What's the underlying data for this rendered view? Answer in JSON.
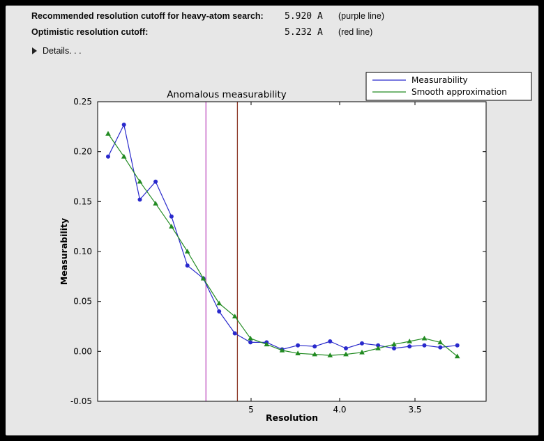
{
  "window": {
    "background": "#000000",
    "panel_color": "#e7e7e7"
  },
  "header": {
    "rows": [
      {
        "label": "Recommended resolution cutoff for heavy-atom search:",
        "value": "5.920 A",
        "note": "(purple line)"
      },
      {
        "label": "Optimistic resolution cutoff:",
        "value": "5.232 A",
        "note": "(red line)"
      }
    ],
    "details_label": "Details. . ."
  },
  "chart_data": {
    "type": "line",
    "title": "Anomalous measurability",
    "xlabel": "Resolution",
    "ylabel": "Measurability",
    "x_axis": {
      "scale": "linear in 1/d^2, resolution d (Angstrom) decreasing to the right",
      "tick_labels": [
        "5",
        "4.0",
        "3.5"
      ],
      "tick_d_values": [
        5.0,
        4.0,
        3.5
      ],
      "xlim_d_star_sq": [
        0.00102,
        0.0997
      ]
    },
    "y_axis": {
      "ticks": [
        0.25,
        0.2,
        0.15,
        0.1,
        0.05,
        0.0,
        -0.05
      ],
      "ylim": [
        -0.05,
        0.25
      ],
      "grid": false
    },
    "x_resolution_d": [
      16.5,
      11.4,
      9.23,
      7.97,
      7.11,
      6.48,
      5.99,
      5.6,
      5.28,
      5.01,
      4.77,
      4.57,
      4.39,
      4.22,
      4.08,
      3.95,
      3.83,
      3.72,
      3.62,
      3.53,
      3.45,
      3.37,
      3.29
    ],
    "series": [
      {
        "name": "Measurability",
        "color": "#2929cc",
        "marker": "circle",
        "values": [
          0.195,
          0.227,
          0.152,
          0.17,
          0.135,
          0.086,
          0.073,
          0.04,
          0.018,
          0.009,
          0.009,
          0.002,
          0.006,
          0.005,
          0.01,
          0.003,
          0.008,
          0.006,
          0.003,
          0.005,
          0.006,
          0.004,
          0.006
        ]
      },
      {
        "name": "Smooth approximation",
        "color": "#228b22",
        "marker": "triangle",
        "values": [
          0.218,
          0.195,
          0.17,
          0.148,
          0.125,
          0.1,
          0.073,
          0.048,
          0.035,
          0.013,
          0.007,
          0.001,
          -0.002,
          -0.003,
          -0.004,
          -0.003,
          -0.001,
          0.003,
          0.007,
          0.01,
          0.013,
          0.009,
          -0.005
        ]
      }
    ],
    "vlines": [
      {
        "name": "purple-cutoff-line",
        "d": 5.92,
        "color": "#bf4fbf"
      },
      {
        "name": "red-cutoff-line",
        "d": 5.232,
        "color": "#8e3b2a"
      }
    ],
    "legend": {
      "position": "upper right",
      "entries": [
        "Measurability",
        "Smooth approximation"
      ]
    }
  }
}
